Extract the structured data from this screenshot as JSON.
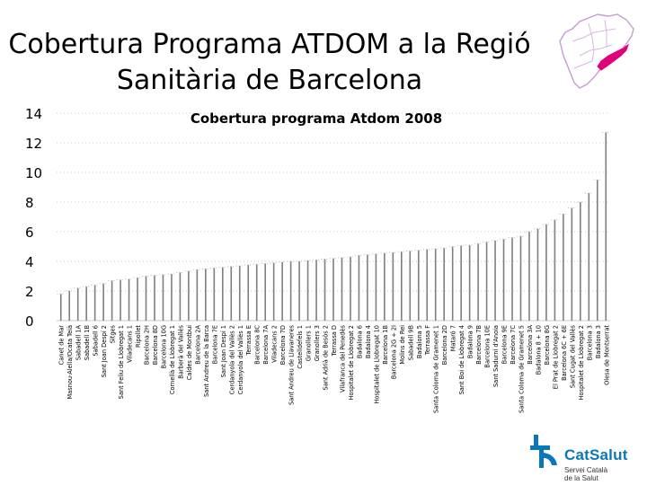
{
  "page": {
    "title_line1": "Cobertura Programa ATDOM a la Regió",
    "title_line2": "Sanitària de Barcelona"
  },
  "logo": {
    "name": "CatSalut",
    "subtitle_line1": "Servei Català",
    "subtitle_line2": "de la Salut"
  },
  "map": {
    "icon": "catalonia-map-icon",
    "highlight_color": "#e0007a",
    "outline_color": "#c79ad4"
  },
  "colors": {
    "bar": "#7f7f7f",
    "grid": "#c8c8c8",
    "text": "#000000"
  },
  "chart_data": {
    "type": "bar",
    "title": "Cobertura programa Atdom 2008",
    "xlabel": "",
    "ylabel": "",
    "ylim": [
      0,
      14
    ],
    "yticks": [
      0,
      2,
      4,
      6,
      8,
      10,
      12,
      14
    ],
    "grid": true,
    "categories": [
      "Canet de Mar",
      "Masnou-Alella/Ocata Teià",
      "Sabadell 1A",
      "Sabadell 1B",
      "Sabadell 6",
      "Sant Joan Despí 2",
      "Sitges",
      "Sant Feliu de Llobregat 1",
      "Viladecans 1",
      "Ripollet",
      "Barcelona 2H",
      "Barcelona 8D",
      "Barcelona 10G",
      "Cornellà de Llobregat 1",
      "Barberà del Vallès",
      "Caldes de Montbui",
      "Barcelona 2A",
      "Sant Andreu de la Barca",
      "Barcelona 7E",
      "Sant Joan Despí 1",
      "Cerdanyola del Vallès 2",
      "Cerdanyola del Vallès 1",
      "Terrassa E",
      "Barcelona 8C",
      "Barcelona 7A",
      "Viladecans 2",
      "Barcelona 7D",
      "Sant Andreu de Llavaneres",
      "Castelldefels 1",
      "Granollers 1",
      "Granollers 3",
      "Sant Adrià de Besòs 2",
      "Terrassa D",
      "Vilafranca del Penedès",
      "Hospitalet de Llobregat 2",
      "Badalona 6",
      "Badalona 4",
      "Hospitalet de Llobregat 10",
      "Barcelona 1B",
      "Barcelona 2G + 2I",
      "Molins de Rei",
      "Sabadell 9B",
      "Badalona 5",
      "Terrassa F",
      "Santa Coloma de Gramenet 1",
      "Barcelona 2D",
      "Mataró 7",
      "Sant Boi de Llobregat 4",
      "Badalona 9",
      "Barcelona 7B",
      "Barcelona 10E",
      "Sant Sadurní d'Anoia",
      "Barcelona 9E",
      "Barcelona 7C",
      "Santa Coloma de Gramenet 5",
      "Barcelona 3A",
      "Badalona 8 + 10",
      "Barcelona 8G",
      "El Prat de Llobregat 2",
      "Barcelona 6C + 6E",
      "Sant Cugat del Vallès",
      "Hospitalet de Llobregat 2",
      "Barcelona 3",
      "Badalona 3",
      "Olesa de Montserrat"
    ],
    "values": [
      1.8,
      2.0,
      2.2,
      2.3,
      2.4,
      2.5,
      2.7,
      2.75,
      2.8,
      2.9,
      3.0,
      3.05,
      3.1,
      3.15,
      3.25,
      3.35,
      3.45,
      3.5,
      3.55,
      3.6,
      3.65,
      3.7,
      3.75,
      3.8,
      3.85,
      3.9,
      3.95,
      4.0,
      4.0,
      4.05,
      4.1,
      4.15,
      4.2,
      4.25,
      4.3,
      4.4,
      4.45,
      4.5,
      4.55,
      4.6,
      4.65,
      4.7,
      4.75,
      4.8,
      4.85,
      4.9,
      5.0,
      5.05,
      5.1,
      5.2,
      5.3,
      5.4,
      5.5,
      5.6,
      5.7,
      6.0,
      6.2,
      6.5,
      6.8,
      7.2,
      7.6,
      8.0,
      8.6,
      9.5,
      12.7
    ]
  }
}
